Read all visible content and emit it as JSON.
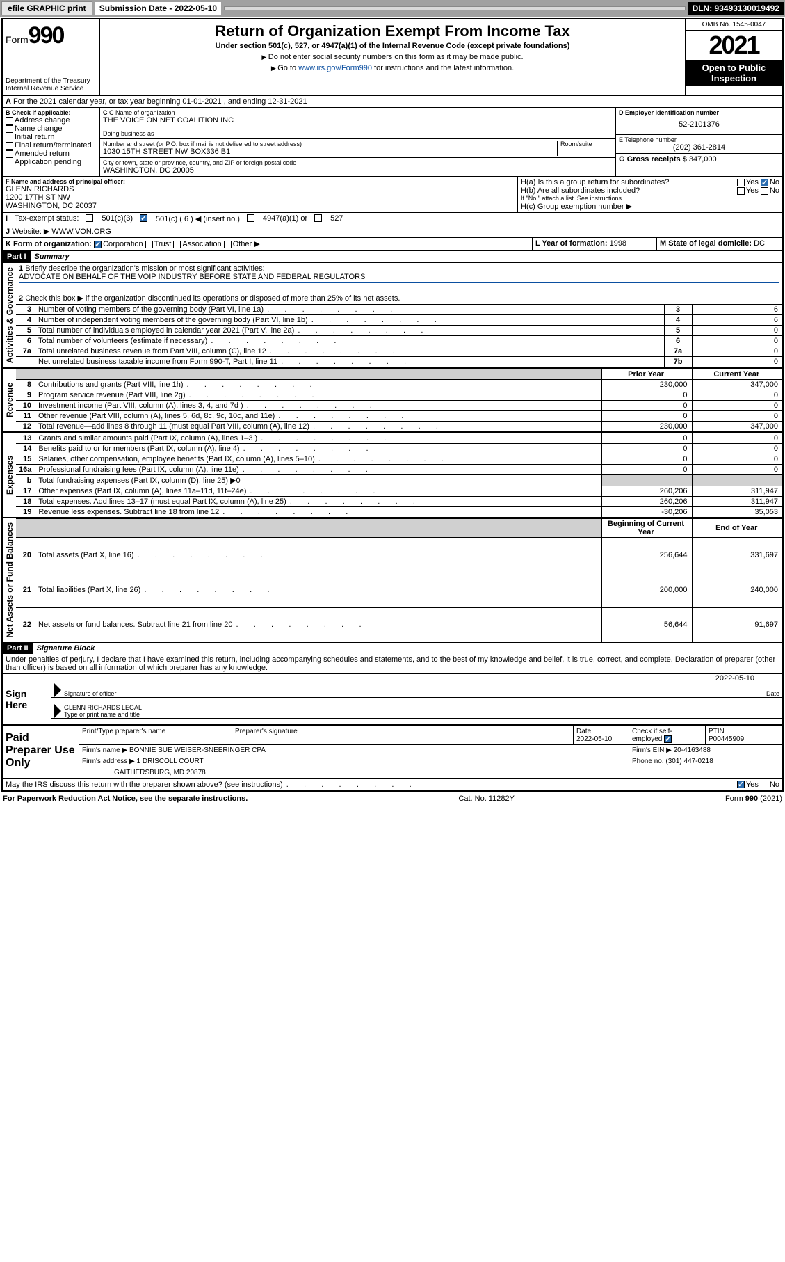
{
  "toolbar": {
    "efile": "efile GRAPHIC print",
    "subdate_label": "Submission Date - 2022-05-10",
    "dln": "DLN: 93493130019492"
  },
  "header": {
    "form_word": "Form",
    "form_num": "990",
    "dept": "Department of the Treasury",
    "irs": "Internal Revenue Service",
    "title": "Return of Organization Exempt From Income Tax",
    "sub": "Under section 501(c), 527, or 4947(a)(1) of the Internal Revenue Code (except private foundations)",
    "note1": "Do not enter social security numbers on this form as it may be made public.",
    "note2_pre": "Go to ",
    "note2_link": "www.irs.gov/Form990",
    "note2_post": " for instructions and the latest information.",
    "omb": "OMB No. 1545-0047",
    "year": "2021",
    "open": "Open to Public Inspection"
  },
  "lineA": "For the 2021 calendar year, or tax year beginning 01-01-2021   , and ending 12-31-2021",
  "boxB": {
    "label": "B Check if applicable:",
    "items": [
      "Address change",
      "Name change",
      "Initial return",
      "Final return/terminated",
      "Amended return",
      "Application pending"
    ]
  },
  "boxC": {
    "name_label": "C Name of organization",
    "name": "THE VOICE ON NET COALITION INC",
    "dba_label": "Doing business as",
    "street_label": "Number and street (or P.O. box if mail is not delivered to street address)",
    "room_label": "Room/suite",
    "street": "1030 15TH STREET NW BOX336 B1",
    "city_label": "City or town, state or province, country, and ZIP or foreign postal code",
    "city": "WASHINGTON, DC  20005"
  },
  "boxD": {
    "label": "D Employer identification number",
    "value": "52-2101376"
  },
  "boxE": {
    "label": "E Telephone number",
    "value": "(202) 361-2814"
  },
  "boxG": {
    "label": "G Gross receipts $",
    "value": "347,000"
  },
  "boxF": {
    "label": "F Name and address of principal officer:",
    "name": "GLENN RICHARDS",
    "addr1": "1200 17TH ST NW",
    "addr2": "WASHINGTON, DC  20037"
  },
  "boxH": {
    "a": "H(a)  Is this a group return for subordinates?",
    "b": "H(b)  Are all subordinates included?",
    "note": "If \"No,\" attach a list. See instructions.",
    "c": "H(c)  Group exemption number ▶",
    "yes": "Yes",
    "no": "No"
  },
  "lineI": {
    "label": "Tax-exempt status:",
    "opts": [
      "501(c)(3)",
      "501(c) ( 6 ) ◀ (insert no.)",
      "4947(a)(1) or",
      "527"
    ]
  },
  "lineJ": {
    "label": "Website: ▶",
    "value": "WWW.VON.ORG"
  },
  "lineK": {
    "label": "K Form of organization:",
    "opts": [
      "Corporation",
      "Trust",
      "Association",
      "Other ▶"
    ]
  },
  "lineL": {
    "label": "L Year of formation:",
    "value": "1998"
  },
  "lineM": {
    "label": "M State of legal domicile:",
    "value": "DC"
  },
  "partI": {
    "hdr": "Part I",
    "title": "Summary",
    "q1": "Briefly describe the organization's mission or most significant activities:",
    "mission": "ADVOCATE ON BEHALF OF THE VOIP INDUSTRY BEFORE STATE AND FEDERAL REGULATORS",
    "q2": "Check this box ▶     if the organization discontinued its operations or disposed of more than 25% of its net assets.",
    "vtabs": {
      "ag": "Activities & Governance",
      "rev": "Revenue",
      "exp": "Expenses",
      "nab": "Net Assets or Fund Balances"
    },
    "col_prior": "Prior Year",
    "col_current": "Current Year",
    "col_beg": "Beginning of Current Year",
    "col_end": "End of Year",
    "rows_gov": [
      {
        "n": "3",
        "t": "Number of voting members of the governing body (Part VI, line 1a)",
        "box": "3",
        "v": "6"
      },
      {
        "n": "4",
        "t": "Number of independent voting members of the governing body (Part VI, line 1b)",
        "box": "4",
        "v": "6"
      },
      {
        "n": "5",
        "t": "Total number of individuals employed in calendar year 2021 (Part V, line 2a)",
        "box": "5",
        "v": "0"
      },
      {
        "n": "6",
        "t": "Total number of volunteers (estimate if necessary)",
        "box": "6",
        "v": "0"
      },
      {
        "n": "7a",
        "t": "Total unrelated business revenue from Part VIII, column (C), line 12",
        "box": "7a",
        "v": "0"
      },
      {
        "n": "",
        "t": "Net unrelated business taxable income from Form 990-T, Part I, line 11",
        "box": "7b",
        "v": "0"
      }
    ],
    "rows_rev": [
      {
        "n": "8",
        "t": "Contributions and grants (Part VIII, line 1h)",
        "p": "230,000",
        "c": "347,000"
      },
      {
        "n": "9",
        "t": "Program service revenue (Part VIII, line 2g)",
        "p": "0",
        "c": "0"
      },
      {
        "n": "10",
        "t": "Investment income (Part VIII, column (A), lines 3, 4, and 7d )",
        "p": "0",
        "c": "0"
      },
      {
        "n": "11",
        "t": "Other revenue (Part VIII, column (A), lines 5, 6d, 8c, 9c, 10c, and 11e)",
        "p": "0",
        "c": "0"
      },
      {
        "n": "12",
        "t": "Total revenue—add lines 8 through 11 (must equal Part VIII, column (A), line 12)",
        "p": "230,000",
        "c": "347,000"
      }
    ],
    "rows_exp": [
      {
        "n": "13",
        "t": "Grants and similar amounts paid (Part IX, column (A), lines 1–3 )",
        "p": "0",
        "c": "0"
      },
      {
        "n": "14",
        "t": "Benefits paid to or for members (Part IX, column (A), line 4)",
        "p": "0",
        "c": "0"
      },
      {
        "n": "15",
        "t": "Salaries, other compensation, employee benefits (Part IX, column (A), lines 5–10)",
        "p": "0",
        "c": "0"
      },
      {
        "n": "16a",
        "t": "Professional fundraising fees (Part IX, column (A), line 11e)",
        "p": "0",
        "c": "0"
      },
      {
        "n": "b",
        "t": "Total fundraising expenses (Part IX, column (D), line 25) ▶0",
        "shade": true
      },
      {
        "n": "17",
        "t": "Other expenses (Part IX, column (A), lines 11a–11d, 11f–24e)",
        "p": "260,206",
        "c": "311,947"
      },
      {
        "n": "18",
        "t": "Total expenses. Add lines 13–17 (must equal Part IX, column (A), line 25)",
        "p": "260,206",
        "c": "311,947"
      },
      {
        "n": "19",
        "t": "Revenue less expenses. Subtract line 18 from line 12",
        "p": "-30,206",
        "c": "35,053"
      }
    ],
    "rows_nab": [
      {
        "n": "20",
        "t": "Total assets (Part X, line 16)",
        "p": "256,644",
        "c": "331,697"
      },
      {
        "n": "21",
        "t": "Total liabilities (Part X, line 26)",
        "p": "200,000",
        "c": "240,000"
      },
      {
        "n": "22",
        "t": "Net assets or fund balances. Subtract line 21 from line 20",
        "p": "56,644",
        "c": "91,697"
      }
    ]
  },
  "partII": {
    "hdr": "Part II",
    "title": "Signature Block",
    "decl": "Under penalties of perjury, I declare that I have examined this return, including accompanying schedules and statements, and to the best of my knowledge and belief, it is true, correct, and complete. Declaration of preparer (other than officer) is based on all information of which preparer has any knowledge.",
    "sign_here": "Sign Here",
    "sig_officer": "Signature of officer",
    "date": "Date",
    "date_val": "2022-05-10",
    "name_title": "GLENN RICHARDS LEGAL",
    "type_name": "Type or print name and title"
  },
  "paid": {
    "label": "Paid Preparer Use Only",
    "h_name": "Print/Type preparer's name",
    "h_sig": "Preparer's signature",
    "h_date": "Date",
    "date_val": "2022-05-10",
    "h_check": "Check       if self-employed",
    "h_ptin": "PTIN",
    "ptin": "P00445909",
    "firm_name_l": "Firm's name    ▶",
    "firm_name": "BONNIE SUE WEISER-SNEERINGER CPA",
    "firm_ein_l": "Firm's EIN ▶",
    "firm_ein": "20-4163488",
    "firm_addr_l": "Firm's address ▶",
    "firm_addr1": "1 DRISCOLL COURT",
    "firm_addr2": "GAITHERSBURG, MD  20878",
    "phone_l": "Phone no.",
    "phone": "(301) 447-0218",
    "discuss": "May the IRS discuss this return with the preparer shown above? (see instructions)",
    "yes": "Yes",
    "no": "No"
  },
  "footer": {
    "pra": "For Paperwork Reduction Act Notice, see the separate instructions.",
    "cat": "Cat. No. 11282Y",
    "form": "Form 990 (2021)"
  },
  "colors": {
    "link": "#0b4fa0",
    "black": "#000000",
    "shade": "#d0d0d0",
    "toolbar": "#a0a0a0"
  }
}
